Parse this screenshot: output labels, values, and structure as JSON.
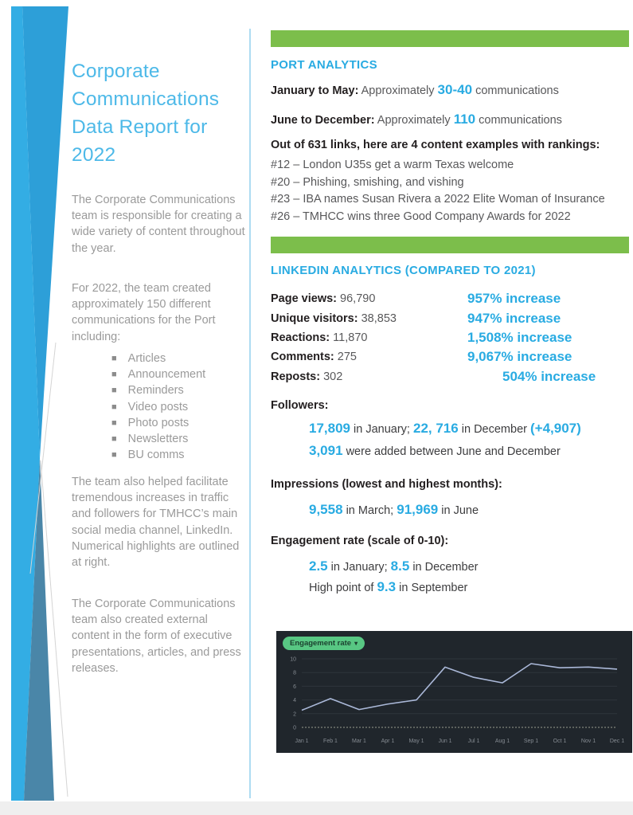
{
  "colors": {
    "accent_blue": "#29abe2",
    "title_blue": "#4db9e8",
    "green_bar": "#7cbe4b",
    "sidebar_gray": "#9a9a9a",
    "body_gray": "#58585a",
    "chart_background": "#20262c",
    "chart_line": "#aab8d8",
    "pill_green": "#58c783"
  },
  "icons": {
    "dropdown_caret": "▾",
    "bullet": "■"
  },
  "sidebar": {
    "title": "Corporate Communications Data Report for 2022",
    "para1": "The Corporate Communications team is responsible for creating a wide variety of content throughout the year.",
    "para2": "For 2022, the team created approximately 150 different communications for the Port including:",
    "bullets": [
      "Articles",
      "Announcement",
      "Reminders",
      "Video posts",
      "Photo posts",
      "Newsletters",
      "BU comms"
    ],
    "para3": "The team also helped facilitate tremendous increases in traffic and followers for TMHCC’s main social media channel, LinkedIn. Numerical highlights are outlined at right.",
    "para4": "The Corporate Communications team also created external content in the form of executive presentations, articles, and press releases."
  },
  "port_analytics": {
    "heading": "PORT ANALYTICS",
    "line1": {
      "label": "January to May:",
      "mid": "Approximately",
      "value": "30-40",
      "suffix": "communications"
    },
    "line2": {
      "label": "June to December:",
      "mid": "Approximately",
      "value": "110",
      "suffix": "communications"
    },
    "rankings_heading": "Out of 631 links, here are 4 content examples with rankings:",
    "rankings": [
      "#12 – London U35s get a warm Texas welcome",
      "#20 – Phishing, smishing, and vishing",
      "#23 –  IBA names Susan Rivera a 2022 Elite Woman of Insurance",
      "#26 –  TMHCC wins three Good Company Awards for 2022"
    ]
  },
  "linkedin_analytics": {
    "heading": "LINKEDIN ANALYTICS (COMPARED TO 2021)",
    "stats": [
      {
        "label": "Page views:",
        "value": "96,790",
        "increase": "957% increase"
      },
      {
        "label": "Unique visitors:",
        "value": "38,853",
        "increase": "947% increase"
      },
      {
        "label": "Reactions:",
        "value": "11,870",
        "increase": "1,508% increase"
      },
      {
        "label": "Comments:",
        "value": "275",
        "increase": "9,067% increase"
      },
      {
        "label": "Reposts:",
        "value": "302",
        "increase": "504% increase"
      }
    ],
    "followers": {
      "heading": "Followers:",
      "jan_value": "17,809",
      "jan_text": "in January;",
      "dec_value": "22, 716",
      "dec_text": "in December",
      "delta": "(+4,907)",
      "added_value": "3,091",
      "added_text": "were added between June and December"
    },
    "impressions": {
      "heading": "Impressions (lowest and highest months):",
      "low_value": "9,558",
      "low_text": "in March;",
      "high_value": "91,969",
      "high_text": "in June"
    },
    "engagement": {
      "heading": "Engagement rate (scale of 0-10):",
      "jan_value": "2.5",
      "jan_text": "in January;",
      "dec_value": "8.5",
      "dec_text": "in December",
      "high_prefix": "High point of",
      "high_value": "9.3",
      "high_text": "in September"
    }
  },
  "chart_data": {
    "type": "line",
    "title": "",
    "legend": "Engagement rate",
    "legend_position": "top-left",
    "x": [
      "Jan 1",
      "Feb 1",
      "Mar 1",
      "Apr 1",
      "May 1",
      "Jun 1",
      "Jul 1",
      "Aug 1",
      "Sep 1",
      "Oct 1",
      "Nov 1",
      "Dec 1"
    ],
    "series": [
      {
        "name": "Engagement rate",
        "values": [
          2.5,
          4.2,
          2.6,
          3.4,
          4.0,
          8.8,
          7.3,
          6.5,
          9.3,
          8.7,
          8.8,
          8.5
        ]
      }
    ],
    "ylim": [
      0,
      10
    ],
    "yticks": [
      0,
      2,
      4,
      6,
      8,
      10
    ],
    "grid": true,
    "xlabel": "",
    "ylabel": ""
  }
}
